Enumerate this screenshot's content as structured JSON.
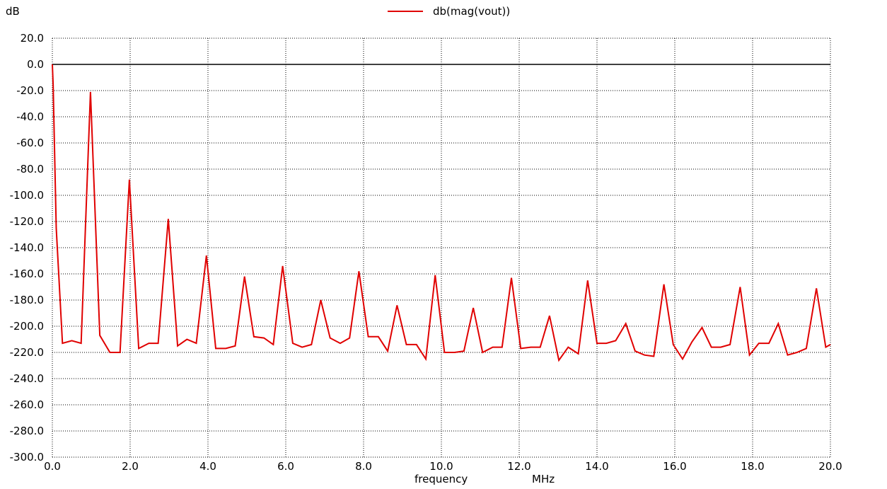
{
  "chart_data": {
    "type": "line",
    "title": "",
    "ylabel": "dB",
    "xlabel": "frequency",
    "xunit": "MHz",
    "xlim": [
      0,
      20
    ],
    "ylim": [
      -300,
      20
    ],
    "grid": true,
    "legend_position": "top-center",
    "x_ticks": [
      "0.0",
      "2.0",
      "4.0",
      "6.0",
      "8.0",
      "10.0",
      "12.0",
      "14.0",
      "16.0",
      "18.0",
      "20.0"
    ],
    "y_ticks": [
      "20.0",
      "0.0",
      "-20.0",
      "-40.0",
      "-60.0",
      "-80.0",
      "-100.0",
      "-120.0",
      "-140.0",
      "-160.0",
      "-180.0",
      "-200.0",
      "-220.0",
      "-240.0",
      "-260.0",
      "-280.0",
      "-300.0"
    ],
    "series": [
      {
        "name": "db(mag(vout))",
        "color": "#e00000",
        "x": [
          0,
          0.02,
          0.1,
          0.26,
          0.5,
          0.74,
          0.98,
          1.22,
          1.48,
          1.74,
          1.98,
          2.22,
          2.48,
          2.72,
          2.98,
          3.22,
          3.46,
          3.7,
          3.96,
          4.2,
          4.46,
          4.7,
          4.94,
          5.18,
          5.44,
          5.68,
          5.92,
          6.18,
          6.42,
          6.66,
          6.9,
          7.14,
          7.4,
          7.64,
          7.88,
          8.12,
          8.38,
          8.62,
          8.86,
          9.1,
          9.36,
          9.6,
          9.84,
          10.08,
          10.34,
          10.58,
          10.82,
          11.06,
          11.32,
          11.56,
          11.8,
          12.04,
          12.3,
          12.54,
          12.78,
          13.02,
          13.26,
          13.52,
          13.76,
          14.0,
          14.24,
          14.48,
          14.74,
          14.98,
          15.22,
          15.46,
          15.72,
          15.96,
          16.2,
          16.44,
          16.7,
          16.94,
          17.18,
          17.42,
          17.68,
          17.92,
          18.16,
          18.42,
          18.66,
          18.9,
          19.14,
          19.38,
          19.64,
          19.88,
          20.0
        ],
        "y": [
          0,
          -15,
          -125,
          -213,
          -211,
          -213,
          -21,
          -207,
          -220,
          -220,
          -88,
          -217,
          -213,
          -213,
          -118,
          -215,
          -210,
          -213,
          -146,
          -217,
          -217,
          -215,
          -162,
          -208,
          -209,
          -214,
          -154,
          -213,
          -216,
          -214,
          -180,
          -209,
          -213,
          -209,
          -158,
          -208,
          -208,
          -219,
          -184,
          -214,
          -214,
          -225,
          -161,
          -220,
          -220,
          -219,
          -186,
          -220,
          -216,
          -216,
          -163,
          -217,
          -216,
          -216,
          -192,
          -226,
          -216,
          -221,
          -165,
          -213,
          -213,
          -211,
          -198,
          -219,
          -222,
          -223,
          -168,
          -214,
          -225,
          -212,
          -201,
          -216,
          -216,
          -214,
          -170,
          -222,
          -213,
          -213,
          -198,
          -222,
          -220,
          -217,
          -171,
          -216,
          -214
        ]
      }
    ]
  }
}
